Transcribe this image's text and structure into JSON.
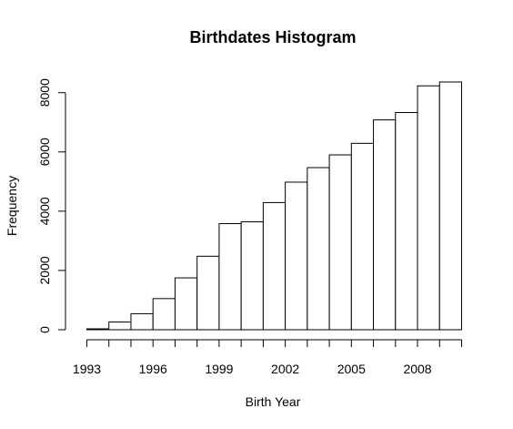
{
  "chart_data": {
    "type": "bar",
    "title": "Birthdates Histogram",
    "xlabel": "Birth Year",
    "ylabel": "Frequency",
    "bin_start": 1993,
    "bin_width": 1,
    "values": [
      30,
      260,
      540,
      1050,
      1750,
      2480,
      3580,
      3640,
      4290,
      4980,
      5470,
      5900,
      6290,
      7080,
      7330,
      8230,
      8360
    ],
    "xlim": [
      1993,
      2010
    ],
    "ylim": [
      0,
      8360
    ],
    "x_ticks": [
      1993,
      1994,
      1995,
      1996,
      1997,
      1998,
      1999,
      2000,
      2001,
      2002,
      2003,
      2004,
      2005,
      2006,
      2007,
      2008,
      2009,
      2010
    ],
    "x_tick_labels": [
      {
        "value": 1993,
        "label": "1993"
      },
      {
        "value": 1996,
        "label": "1996"
      },
      {
        "value": 1999,
        "label": "1999"
      },
      {
        "value": 2002,
        "label": "2002"
      },
      {
        "value": 2005,
        "label": "2005"
      },
      {
        "value": 2008,
        "label": "2008"
      }
    ],
    "y_ticks": [
      {
        "value": 0,
        "label": "0"
      },
      {
        "value": 2000,
        "label": "2000"
      },
      {
        "value": 4000,
        "label": "4000"
      },
      {
        "value": 6000,
        "label": "6000"
      },
      {
        "value": 8000,
        "label": "8000"
      }
    ],
    "grid": false,
    "bar_fill": "#ffffff",
    "bar_stroke": "#000000"
  }
}
